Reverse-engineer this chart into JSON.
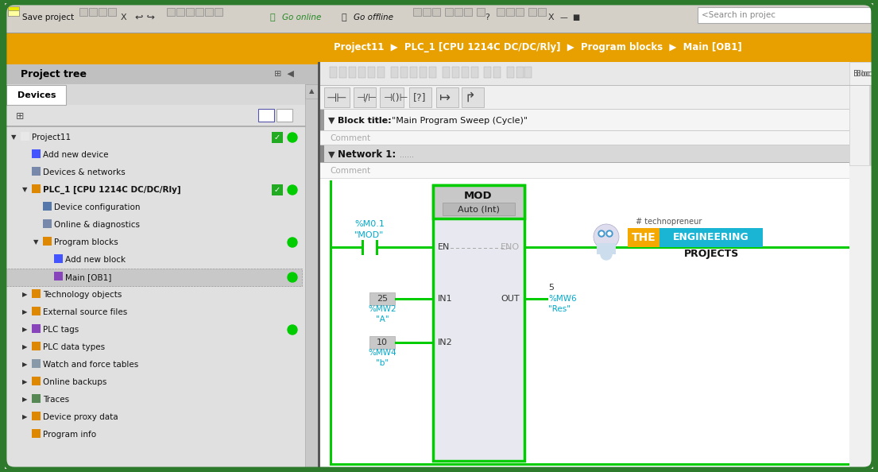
{
  "fig_width": 11.05,
  "fig_height": 5.94,
  "border_color": "#2d7a2d",
  "toolbar_bg": "#d4d0c8",
  "breadcrumb_bg": "#e8a000",
  "breadcrumb_text": "Project11  ▶  PLC_1 [CPU 1214C DC/DC/Rly]  ▶  Program blocks  ▶  Main [OB1]",
  "left_panel_bg": "#e8e8e8",
  "left_panel_orange_bar": "#e8a000",
  "tree_items": [
    {
      "text": "Project11",
      "indent": 0,
      "bold": false,
      "green_check": true,
      "green_dot": true,
      "arrow_down": true
    },
    {
      "text": "Add new device",
      "indent": 1,
      "bold": false,
      "green_check": false,
      "green_dot": false
    },
    {
      "text": "Devices & networks",
      "indent": 1,
      "bold": false,
      "green_check": false,
      "green_dot": false
    },
    {
      "text": "PLC_1 [CPU 1214C DC/DC/Rly]",
      "indent": 1,
      "bold": true,
      "green_check": true,
      "green_dot": true,
      "arrow_down": true
    },
    {
      "text": "Device configuration",
      "indent": 2,
      "bold": false,
      "green_check": false,
      "green_dot": false
    },
    {
      "text": "Online & diagnostics",
      "indent": 2,
      "bold": false,
      "green_check": false,
      "green_dot": false
    },
    {
      "text": "Program blocks",
      "indent": 2,
      "bold": false,
      "green_check": false,
      "green_dot": true,
      "arrow_down": true
    },
    {
      "text": "Add new block",
      "indent": 3,
      "bold": false,
      "green_check": false,
      "green_dot": false
    },
    {
      "text": "Main [OB1]",
      "indent": 3,
      "bold": false,
      "green_check": false,
      "green_dot": true,
      "selected": true
    },
    {
      "text": "Technology objects",
      "indent": 1,
      "bold": false,
      "green_check": false,
      "green_dot": false,
      "arrow_right": true
    },
    {
      "text": "External source files",
      "indent": 1,
      "bold": false,
      "green_check": false,
      "green_dot": false,
      "arrow_right": true
    },
    {
      "text": "PLC tags",
      "indent": 1,
      "bold": false,
      "green_check": false,
      "green_dot": true,
      "arrow_right": true
    },
    {
      "text": "PLC data types",
      "indent": 1,
      "bold": false,
      "green_check": false,
      "green_dot": false,
      "arrow_right": true
    },
    {
      "text": "Watch and force tables",
      "indent": 1,
      "bold": false,
      "green_check": false,
      "green_dot": false,
      "arrow_right": true
    },
    {
      "text": "Online backups",
      "indent": 1,
      "bold": false,
      "green_check": false,
      "green_dot": false,
      "arrow_right": true
    },
    {
      "text": "Traces",
      "indent": 1,
      "bold": false,
      "green_check": false,
      "green_dot": false,
      "arrow_right": true
    },
    {
      "text": "Device proxy data",
      "indent": 1,
      "bold": false,
      "green_check": false,
      "green_dot": false,
      "arrow_right": true
    },
    {
      "text": "Program info",
      "indent": 1,
      "bold": false,
      "green_check": false,
      "green_dot": false
    }
  ],
  "addr_text_color": "#00aacc",
  "ladder_line_color": "#00cc00",
  "contact_label_top": "%M0.1",
  "contact_label_bot": "\"MOD\"",
  "mod_box_title": "MOD",
  "mod_box_subtitle": "Auto (Int)",
  "mod_box_border": "#00cc00",
  "in1_val": "25",
  "in1_addr": "%MW2",
  "in1_name": "\"A\"",
  "in2_val": "10",
  "in2_addr": "%MW4",
  "in2_name": "\"b\"",
  "out_val": "5",
  "out_addr": "%MW6",
  "out_name": "\"Res\"",
  "logo_the_bg": "#f5a800",
  "logo_eng_bg": "#1ab5d4"
}
